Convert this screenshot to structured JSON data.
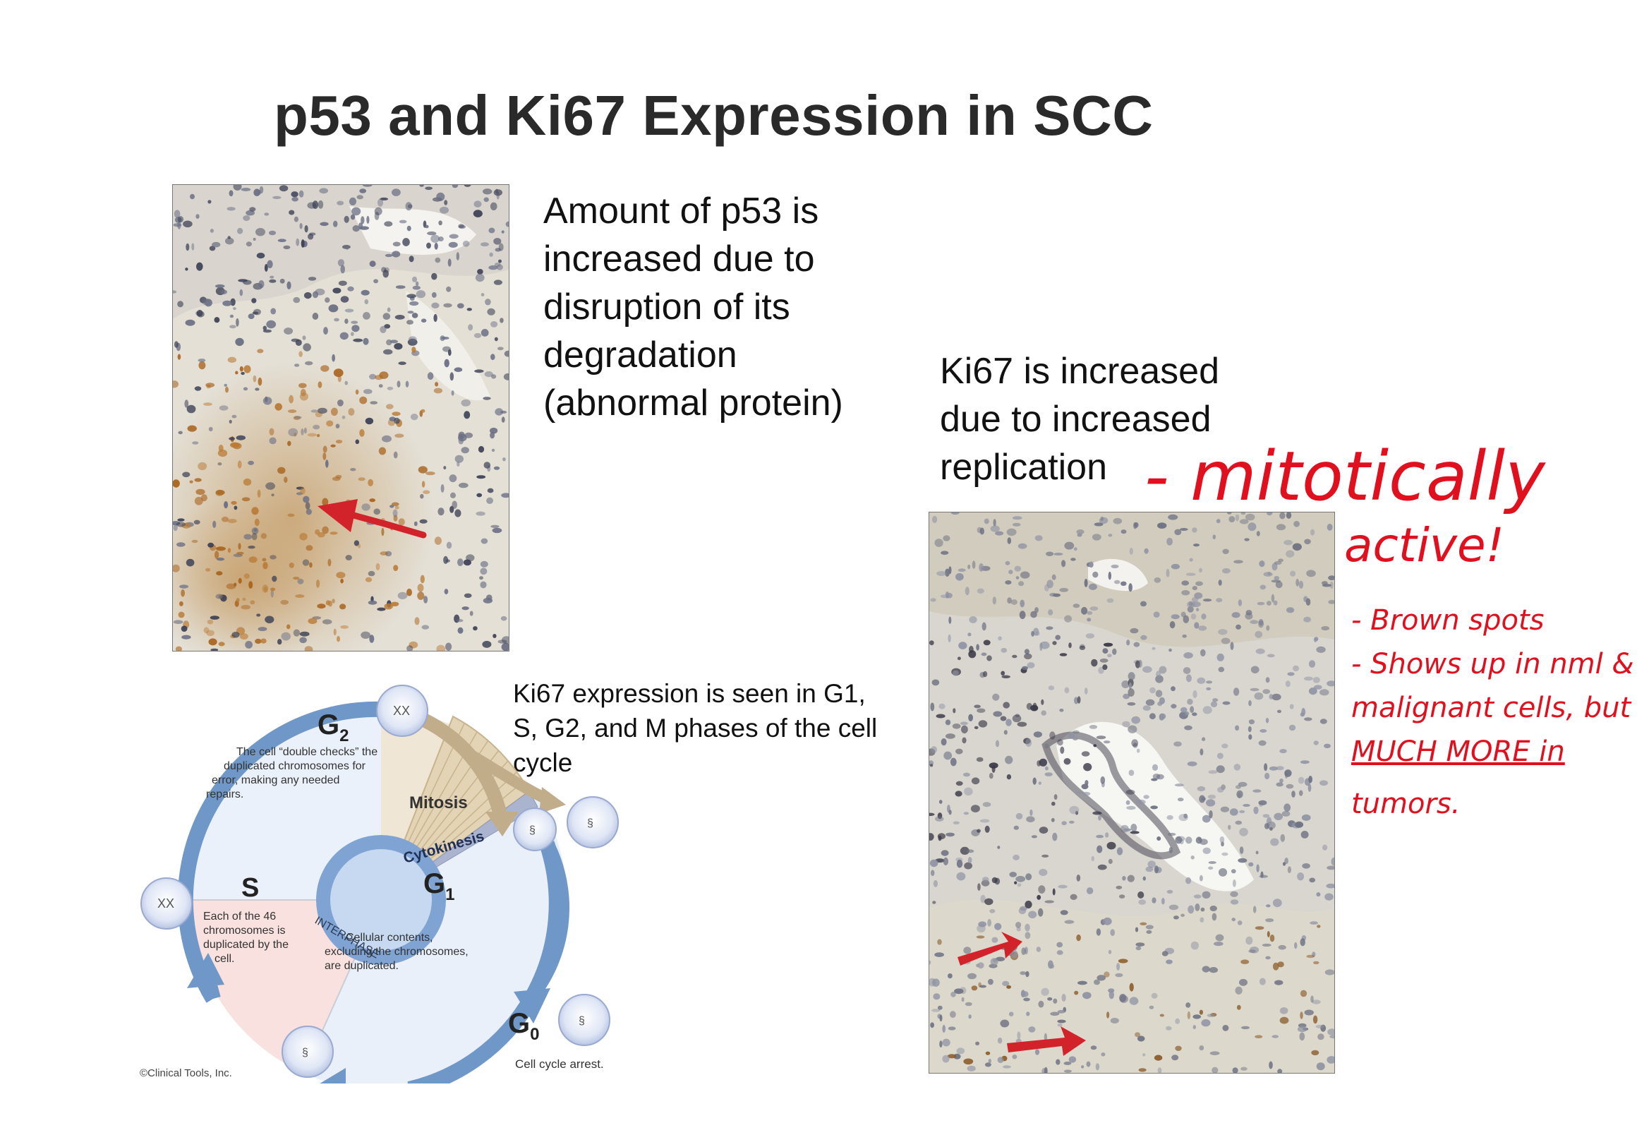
{
  "slide": {
    "title": "p53 and Ki67 Expression in SCC",
    "p53_text": [
      "Amount of p53 is",
      "increased due to",
      "disruption of its",
      "degradation",
      "(abnormal protein)"
    ],
    "ki67_text": [
      "Ki67 is increased",
      "due to increased",
      "replication"
    ],
    "ki67_phases_text": [
      "Ki67 expression is seen in G1,",
      "S, G2, and M phases of the cell",
      "cycle"
    ]
  },
  "cell_cycle_diagram": {
    "g2_label": "G",
    "g2_sub": "2",
    "g2_desc": [
      "The cell “double checks” the",
      "duplicated chromosomes for",
      "error, making any needed",
      "repairs."
    ],
    "s_label": "S",
    "s_desc": [
      "Each of the 46",
      "chromosomes is",
      "duplicated by the",
      "cell."
    ],
    "g1_label": "G",
    "g1_sub": "1",
    "g1_desc": [
      "Cellular contents,",
      "excluding the chromosomes,",
      "are duplicated."
    ],
    "mitosis_label": "Mitosis",
    "cytokinesis_label": "Cytokinesis",
    "interphase_label": "INTERPHASE",
    "g0_label": "G",
    "g0_sub": "0",
    "g0_desc": "Cell cycle arrest.",
    "copyright": "©Clinical Tools, Inc."
  },
  "annotations": {
    "line1": "- mitotically",
    "line2": "active!",
    "notes": [
      "- Brown spots",
      "- Shows up in nml &",
      "malignant cells, but",
      "MUCH MORE in",
      "tumors."
    ]
  },
  "colors": {
    "annotation": "#e0101e",
    "arrow_blue": "#6f97c7",
    "arrow_tan": "#c2ad8a",
    "title": "#2a2a2a"
  }
}
